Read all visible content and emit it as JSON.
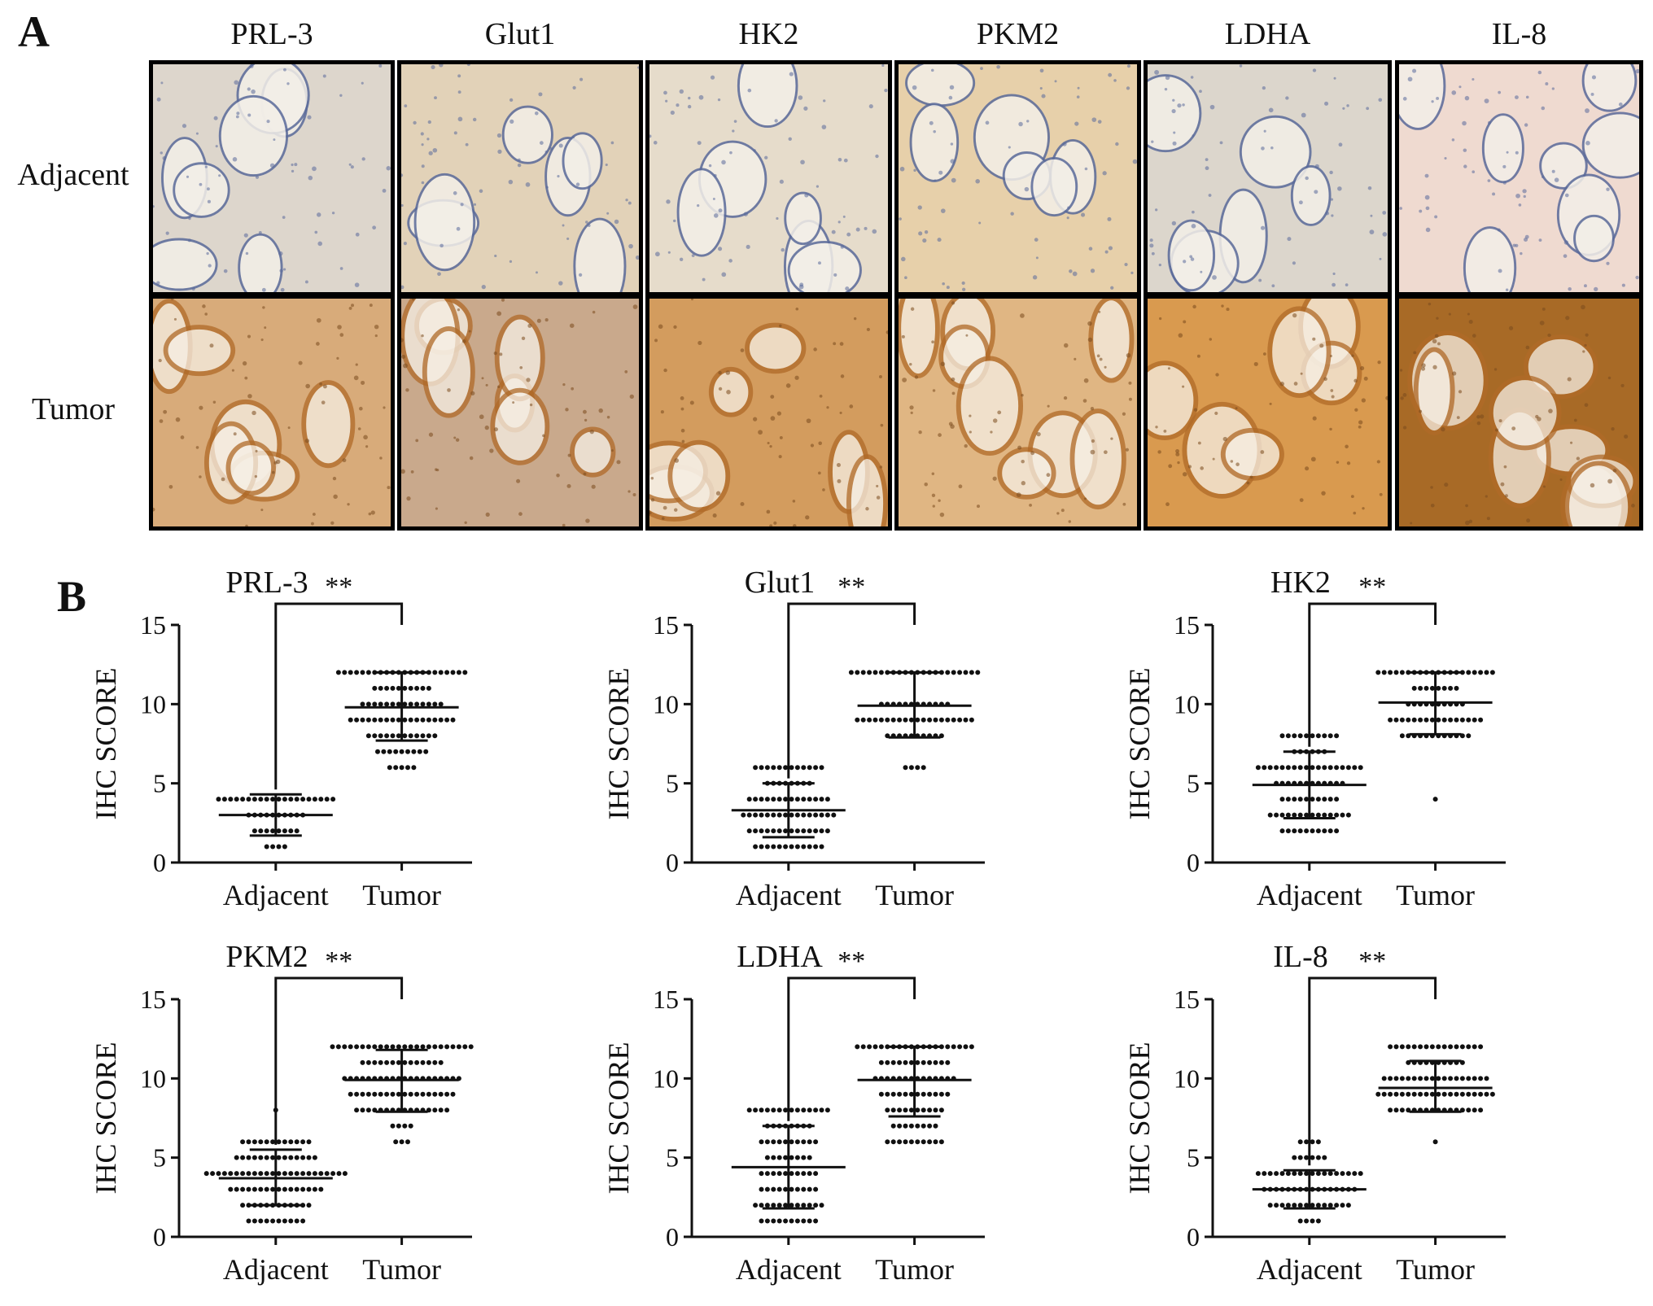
{
  "panel_a": {
    "letter": "A",
    "markers": [
      "PRL-3",
      "Glut1",
      "HK2",
      "PKM2",
      "LDHA",
      "IL-8"
    ],
    "rows": [
      "Adjacent",
      "Tumor"
    ],
    "stain_colors": {
      "adjacent_bg": [
        "#ddd6cc",
        "#e2d2b8",
        "#e6dccb",
        "#e7d0aa",
        "#dcd6cc",
        "#efdad0"
      ],
      "tumor_bg": [
        "#d8ab7a",
        "#c9a98c",
        "#d39c5e",
        "#e0b683",
        "#d99a4f",
        "#a86a26"
      ],
      "nuclei": "#5a6a9a",
      "brown": "#b06a28"
    }
  },
  "panel_b": {
    "letter": "B"
  },
  "chart_data": [
    {
      "type": "scatter",
      "title": "PRL-3",
      "ylabel": "IHC SCORE",
      "categories": [
        "Adjacent",
        "Tumor"
      ],
      "ylim": [
        0,
        15
      ],
      "yticks": [
        0,
        5,
        10,
        15
      ],
      "significance": "**",
      "summary": {
        "Adjacent": {
          "mean": 3.0,
          "sd_low": 1.7,
          "sd_high": 4.3
        },
        "Tumor": {
          "mean": 9.8,
          "sd_low": 7.7,
          "sd_high": 12.0
        }
      },
      "points": {
        "Adjacent": [
          [
            1,
            4
          ],
          [
            2,
            8
          ],
          [
            3,
            10
          ],
          [
            4,
            20
          ]
        ],
        "Tumor": [
          [
            6,
            5
          ],
          [
            7,
            9
          ],
          [
            8,
            12
          ],
          [
            9,
            18
          ],
          [
            10,
            14
          ],
          [
            11,
            10
          ],
          [
            12,
            22
          ]
        ]
      }
    },
    {
      "type": "scatter",
      "title": "Glut1",
      "ylabel": "IHC SCORE",
      "categories": [
        "Adjacent",
        "Tumor"
      ],
      "ylim": [
        0,
        15
      ],
      "yticks": [
        0,
        5,
        10,
        15
      ],
      "significance": "**",
      "summary": {
        "Adjacent": {
          "mean": 3.3,
          "sd_low": 1.6,
          "sd_high": 5.0
        },
        "Tumor": {
          "mean": 9.9,
          "sd_low": 7.9,
          "sd_high": 12.0
        }
      },
      "points": {
        "Adjacent": [
          [
            1,
            12
          ],
          [
            2,
            14
          ],
          [
            3,
            16
          ],
          [
            4,
            14
          ],
          [
            5,
            8
          ],
          [
            6,
            12
          ]
        ],
        "Tumor": [
          [
            6,
            4
          ],
          [
            8,
            10
          ],
          [
            9,
            20
          ],
          [
            10,
            12
          ],
          [
            12,
            22
          ]
        ]
      }
    },
    {
      "type": "scatter",
      "title": "HK2",
      "ylabel": "IHC SCORE",
      "categories": [
        "Adjacent",
        "Tumor"
      ],
      "ylim": [
        0,
        15
      ],
      "yticks": [
        0,
        5,
        10,
        15
      ],
      "significance": "**",
      "summary": {
        "Adjacent": {
          "mean": 4.9,
          "sd_low": 2.8,
          "sd_high": 7.0
        },
        "Tumor": {
          "mean": 10.1,
          "sd_low": 8.1,
          "sd_high": 12.0
        }
      },
      "points": {
        "Adjacent": [
          [
            2,
            10
          ],
          [
            3,
            14
          ],
          [
            4,
            10
          ],
          [
            5,
            12
          ],
          [
            6,
            18
          ],
          [
            7,
            6
          ],
          [
            8,
            10
          ]
        ],
        "Tumor": [
          [
            4,
            1
          ],
          [
            8,
            12
          ],
          [
            9,
            16
          ],
          [
            10,
            10
          ],
          [
            11,
            8
          ],
          [
            12,
            20
          ]
        ]
      }
    },
    {
      "type": "scatter",
      "title": "PKM2",
      "ylabel": "IHC SCORE",
      "categories": [
        "Adjacent",
        "Tumor"
      ],
      "ylim": [
        0,
        15
      ],
      "yticks": [
        0,
        5,
        10,
        15
      ],
      "significance": "**",
      "summary": {
        "Adjacent": {
          "mean": 3.7,
          "sd_low": 2.0,
          "sd_high": 5.5
        },
        "Tumor": {
          "mean": 9.9,
          "sd_low": 7.9,
          "sd_high": 11.8
        }
      },
      "points": {
        "Adjacent": [
          [
            1,
            10
          ],
          [
            2,
            12
          ],
          [
            3,
            16
          ],
          [
            4,
            24
          ],
          [
            5,
            14
          ],
          [
            6,
            12
          ],
          [
            8,
            1
          ]
        ],
        "Tumor": [
          [
            6,
            3
          ],
          [
            7,
            4
          ],
          [
            8,
            16
          ],
          [
            9,
            18
          ],
          [
            10,
            20
          ],
          [
            11,
            14
          ],
          [
            12,
            24
          ]
        ]
      }
    },
    {
      "type": "scatter",
      "title": "LDHA",
      "ylabel": "IHC SCORE",
      "categories": [
        "Adjacent",
        "Tumor"
      ],
      "ylim": [
        0,
        15
      ],
      "yticks": [
        0,
        5,
        10,
        15
      ],
      "significance": "**",
      "summary": {
        "Adjacent": {
          "mean": 4.4,
          "sd_low": 1.8,
          "sd_high": 7.0
        },
        "Tumor": {
          "mean": 9.9,
          "sd_low": 7.6,
          "sd_high": 12.0
        }
      },
      "points": {
        "Adjacent": [
          [
            1,
            10
          ],
          [
            2,
            12
          ],
          [
            3,
            10
          ],
          [
            4,
            10
          ],
          [
            5,
            8
          ],
          [
            6,
            10
          ],
          [
            7,
            8
          ],
          [
            8,
            14
          ]
        ],
        "Tumor": [
          [
            6,
            10
          ],
          [
            7,
            8
          ],
          [
            8,
            10
          ],
          [
            9,
            12
          ],
          [
            10,
            14
          ],
          [
            11,
            12
          ],
          [
            12,
            20
          ]
        ]
      }
    },
    {
      "type": "scatter",
      "title": "IL-8",
      "ylabel": "IHC SCORE",
      "categories": [
        "Adjacent",
        "Tumor"
      ],
      "ylim": [
        0,
        15
      ],
      "yticks": [
        0,
        5,
        10,
        15
      ],
      "significance": "**",
      "summary": {
        "Adjacent": {
          "mean": 3.0,
          "sd_low": 1.8,
          "sd_high": 4.2
        },
        "Tumor": {
          "mean": 9.4,
          "sd_low": 7.9,
          "sd_high": 11.1
        }
      },
      "points": {
        "Adjacent": [
          [
            1,
            4
          ],
          [
            2,
            14
          ],
          [
            3,
            16
          ],
          [
            4,
            18
          ],
          [
            5,
            6
          ],
          [
            6,
            4
          ]
        ],
        "Tumor": [
          [
            6,
            1
          ],
          [
            8,
            16
          ],
          [
            9,
            20
          ],
          [
            10,
            18
          ],
          [
            11,
            10
          ],
          [
            12,
            16
          ]
        ]
      }
    }
  ]
}
